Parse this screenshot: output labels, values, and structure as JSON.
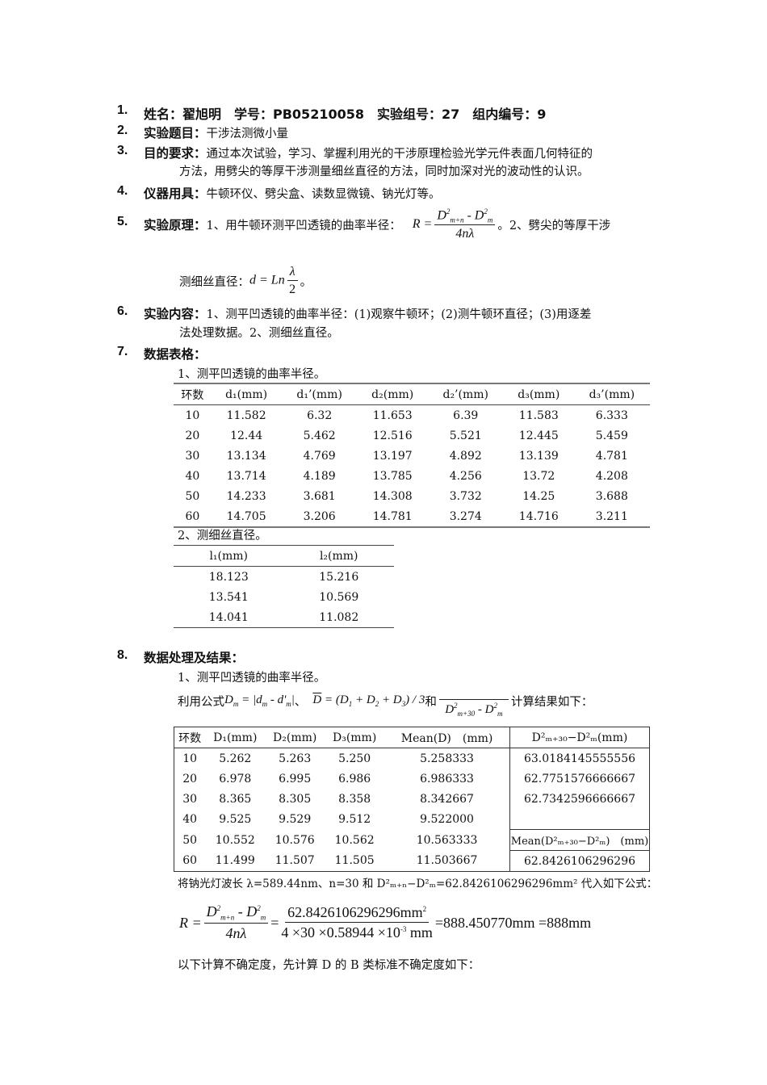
{
  "items": [
    {
      "num": "1.",
      "label": "姓名：翟旭明　学号：PB05210058　实验组号：27　组内编号：9"
    },
    {
      "num": "2.",
      "label": "实验题目：",
      "text": "干涉法测微小量"
    },
    {
      "num": "3.",
      "label": "目的要求：",
      "text": "通过本次试验，学习、掌握利用光的干涉原理检验光学元件表面几何特征的",
      "text2": "方法，用劈尖的等厚干涉测量细丝直径的方法，同时加深对光的波动性的认识。"
    },
    {
      "num": "4.",
      "label": "仪器用具：",
      "text": "牛顿环仪、劈尖盒、读数显微镜、钠光灯等。"
    },
    {
      "num": "5.",
      "label": "实验原理：",
      "text": "1、用牛顿环测平凹透镜的曲率半径：",
      "text_after": "。2、劈尖的等厚干涉",
      "text2": "测细丝直径：",
      "text2_after": "。"
    },
    {
      "num": "6.",
      "label": "实验内容：",
      "text": "1、测平凹透镜的曲率半径：(1)观察牛顿环；(2)测牛顿环直径；(3)用逐差",
      "text2": "法处理数据。2、测细丝直径。"
    },
    {
      "num": "7.",
      "label": "数据表格："
    },
    {
      "num": "8.",
      "label": "数据处理及结果："
    }
  ],
  "formulas": {
    "R_lhs": "R =",
    "R_num_a": "D",
    "R_num_a_sup": "2",
    "R_num_a_sub": "m+n",
    "R_minus": " - ",
    "R_num_b": "D",
    "R_num_b_sup": "2",
    "R_num_b_sub": "m",
    "R_den": "4nλ",
    "d_lhs": "d = Ln",
    "d_num": "λ",
    "d_den": "2",
    "use_prefix": "利用公式",
    "Dm": "D",
    "Dm_sub": "m",
    "Dm_rhs": " = |d",
    "Dm_rhs_sub": "m",
    "Dm_rhs2": " - d'",
    "Dm_rhs2_sub": "m",
    "Dm_rhs3": "|",
    "sep": "、",
    "Dbar": "D",
    "Dbar_rhs": " = (D",
    "s1": "1",
    "p1": " + D",
    "s2": "2",
    "p2": " + D",
    "s3": "3",
    "p3": ") / 3",
    "and": "和",
    "f3_den": "D",
    "f3_sup": "2",
    "f3_sub": "m+30",
    "f3_minus": " - D",
    "f3_sup2": "2",
    "f3_sub2": "m",
    "calc_suffix": "计算结果如下：",
    "big_lhs": "R =",
    "big_mid_num": "62.8426106296296mm",
    "big_mid_num_sup": "2",
    "big_mid_den": "4 ×30 ×0.58944 ×10",
    "big_mid_den_sup": "-3",
    "big_mid_den_unit": " mm",
    "big_eq": " =",
    "big_result": " =888.450770mm =888mm"
  },
  "section7": {
    "caption1": "1、测平凹透镜的曲率半径。",
    "table1": {
      "headers": [
        "环数",
        "d₁(mm)",
        "d₁’(mm)",
        "d₂(mm)",
        "d₂’(mm)",
        "d₃(mm)",
        "d₃’(mm)"
      ],
      "rows": [
        [
          "10",
          "11.582",
          "6.32",
          "11.653",
          "6.39",
          "11.583",
          "6.333"
        ],
        [
          "20",
          "12.44",
          "5.462",
          "12.516",
          "5.521",
          "12.445",
          "5.459"
        ],
        [
          "30",
          "13.134",
          "4.769",
          "13.197",
          "4.892",
          "13.139",
          "4.781"
        ],
        [
          "40",
          "13.714",
          "4.189",
          "13.785",
          "4.256",
          "13.72",
          "4.208"
        ],
        [
          "50",
          "14.233",
          "3.681",
          "14.308",
          "3.732",
          "14.25",
          "3.688"
        ],
        [
          "60",
          "14.705",
          "3.206",
          "14.781",
          "3.274",
          "14.716",
          "3.211"
        ]
      ]
    },
    "caption2": "2、测细丝直径。",
    "table2": {
      "headers": [
        "l₁(mm)",
        "l₂(mm)"
      ],
      "rows": [
        [
          "18.123",
          "15.216"
        ],
        [
          "13.541",
          "10.569"
        ],
        [
          "14.041",
          "11.082"
        ]
      ]
    }
  },
  "section8": {
    "caption1": "1、测平凹透镜的曲率半径。",
    "table3": {
      "headers": [
        "环数",
        "D₁(mm)",
        "D₂(mm)",
        "D₃(mm)",
        "Mean(D)　(mm)",
        "D²ₘ₊₃₀−D²ₘ(mm)"
      ],
      "rows": [
        [
          "10",
          "5.262",
          "5.263",
          "5.250",
          "5.258333"
        ],
        [
          "20",
          "6.978",
          "6.995",
          "6.986",
          "6.986333"
        ],
        [
          "30",
          "8.365",
          "8.305",
          "8.358",
          "8.342667"
        ],
        [
          "40",
          "9.525",
          "9.529",
          "9.512",
          "9.522000"
        ],
        [
          "50",
          "10.552",
          "10.576",
          "10.562",
          "10.563333"
        ],
        [
          "60",
          "11.499",
          "11.507",
          "11.505",
          "11.503667"
        ]
      ],
      "diffs": [
        "63.0184145555556",
        "62.7751576666667",
        "62.7342596666667"
      ],
      "mean_header": "Mean(D²ₘ₊₃₀−D²ₘ)　(mm)",
      "mean_value": "62.8426106296296"
    },
    "substitute_text": "将钠光灯波长 λ=589.44nm、n=30 和 D²ₘ₊ₙ−D²ₘ=62.8426106296296mm² 代入如下公式：",
    "uncertainty_text": "以下计算不确定度，先计算 D 的 B 类标准不确定度如下："
  }
}
